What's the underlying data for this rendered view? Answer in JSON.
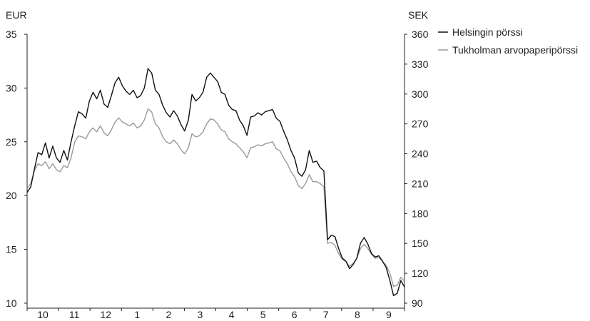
{
  "chart_data": {
    "type": "line",
    "left_unit": "EUR",
    "right_unit": "SEK",
    "left_ylim": [
      10,
      35
    ],
    "left_yticks": [
      10,
      15,
      20,
      25,
      30,
      35
    ],
    "right_ylim": [
      90,
      360
    ],
    "right_yticks": [
      90,
      120,
      150,
      180,
      210,
      240,
      270,
      300,
      330,
      360
    ],
    "x_tick_labels": [
      "10",
      "11",
      "12",
      "1",
      "2",
      "3",
      "4",
      "5",
      "6",
      "7",
      "8",
      "9"
    ],
    "grid": false,
    "legend_position": "top-right",
    "series": [
      {
        "name": "Helsingin pörssi",
        "axis": "left",
        "color": "#111111",
        "values": [
          20.3,
          20.8,
          22.5,
          24.0,
          23.8,
          24.9,
          23.5,
          24.6,
          23.5,
          23.1,
          24.2,
          23.3,
          25.0,
          26.5,
          27.8,
          27.6,
          27.2,
          28.8,
          29.6,
          29.0,
          29.8,
          28.5,
          28.2,
          29.3,
          30.5,
          31.0,
          30.2,
          29.7,
          29.4,
          29.8,
          29.1,
          29.3,
          30.0,
          31.8,
          31.4,
          29.8,
          29.4,
          28.4,
          27.7,
          27.3,
          27.9,
          27.4,
          26.6,
          26.0,
          27.0,
          29.4,
          28.8,
          29.1,
          29.6,
          31.0,
          31.4,
          31.0,
          30.6,
          29.6,
          29.4,
          28.4,
          28.0,
          27.9,
          27.0,
          26.5,
          25.6,
          27.3,
          27.4,
          27.7,
          27.5,
          27.8,
          27.9,
          28.0,
          27.2,
          26.9,
          26.0,
          25.2,
          24.2,
          23.5,
          22.1,
          21.8,
          22.4,
          24.2,
          23.1,
          23.2,
          22.6,
          22.3,
          15.9,
          16.3,
          16.2,
          15.1,
          14.2,
          13.9,
          13.2,
          13.6,
          14.2,
          15.6,
          16.1,
          15.5,
          14.6,
          14.3,
          14.4,
          13.9,
          13.3,
          12.1,
          10.7,
          10.9,
          12.1,
          11.5
        ]
      },
      {
        "name": "Tukholman arvopaperipörssi",
        "axis": "right",
        "color": "#9a9a9a",
        "values": [
          205,
          210,
          223,
          230,
          228,
          232,
          225,
          230,
          224,
          222,
          228,
          226,
          236,
          252,
          258,
          257,
          255,
          262,
          266,
          262,
          268,
          261,
          258,
          264,
          272,
          276,
          272,
          270,
          268,
          271,
          266,
          268,
          274,
          285,
          282,
          270,
          266,
          257,
          252,
          250,
          254,
          250,
          244,
          240,
          246,
          260,
          257,
          258,
          262,
          270,
          275,
          274,
          270,
          264,
          262,
          255,
          252,
          250,
          246,
          242,
          236,
          246,
          247,
          249,
          248,
          250,
          251,
          252,
          245,
          243,
          236,
          230,
          222,
          217,
          208,
          205,
          210,
          219,
          212,
          212,
          210,
          207,
          150,
          151,
          148,
          140,
          134,
          132,
          127,
          130,
          135,
          145,
          149,
          145,
          139,
          135,
          136,
          132,
          128,
          120,
          107,
          108,
          116,
          112
        ]
      }
    ]
  }
}
